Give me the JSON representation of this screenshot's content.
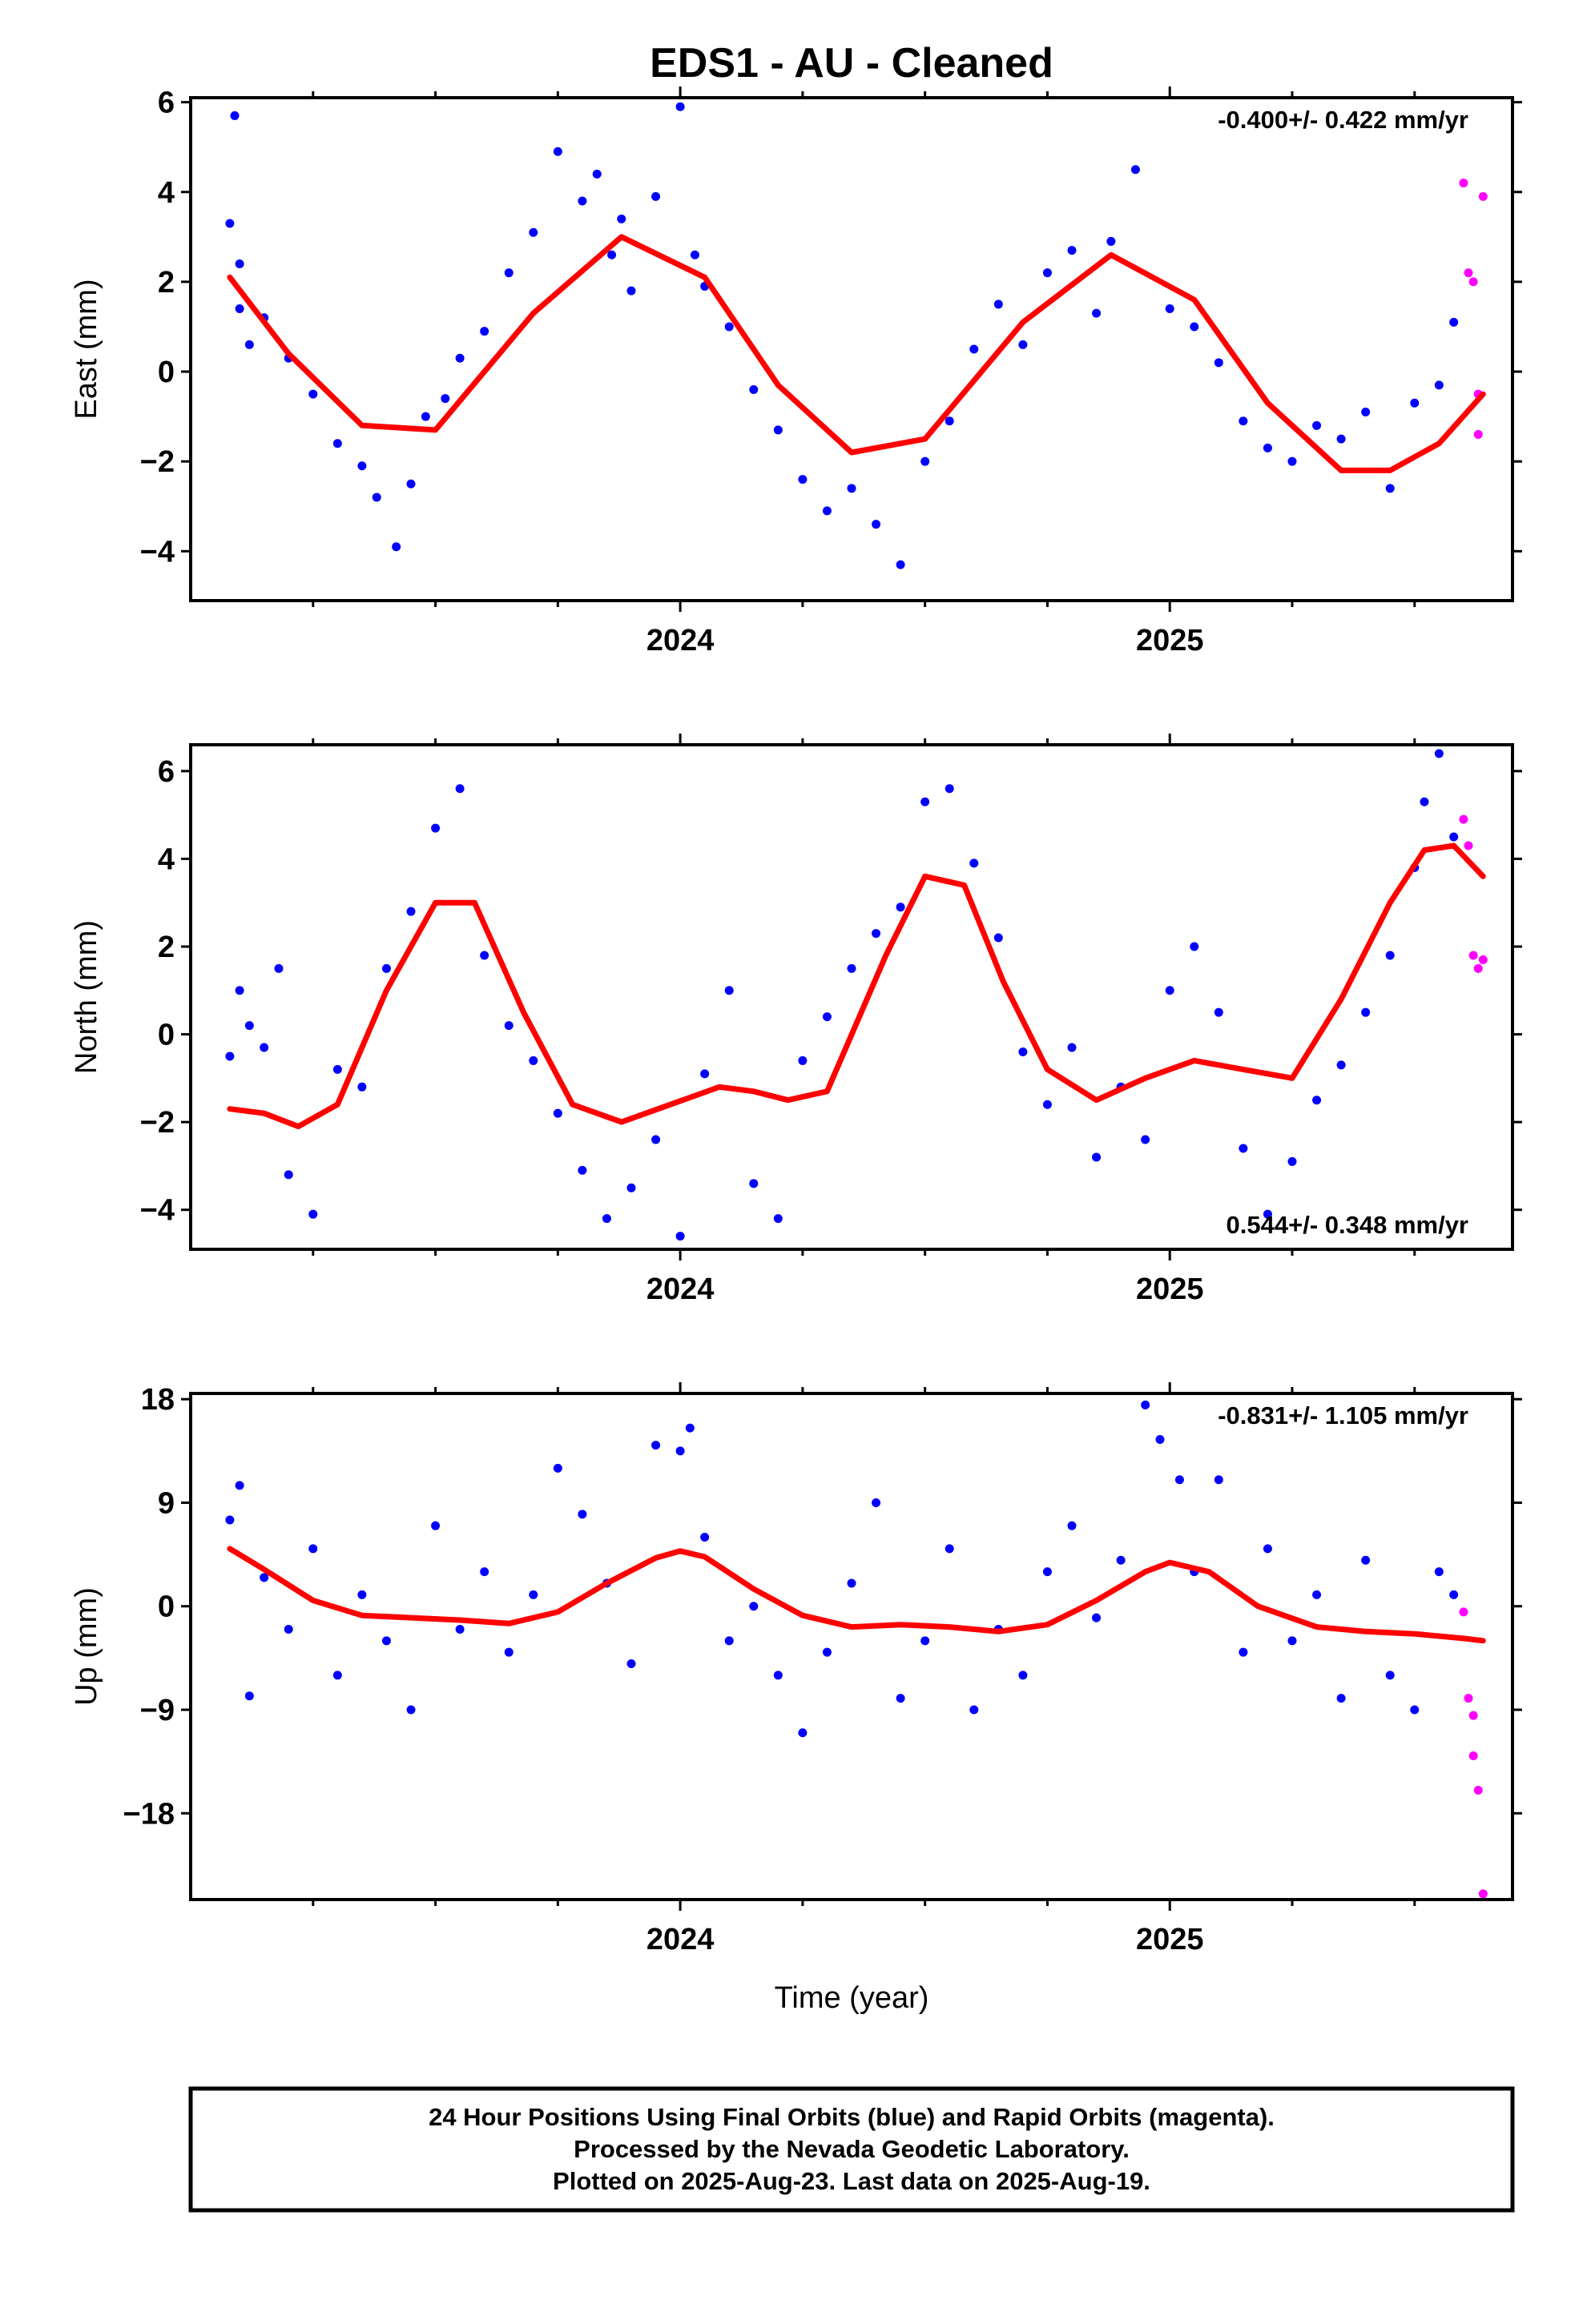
{
  "title": "EDS1  - AU - Cleaned",
  "chart_data": [
    {
      "type": "scatter",
      "xlabel": "",
      "ylabel": "East (mm)",
      "xlim": [
        2023.0,
        2025.7
      ],
      "ylim": [
        -5.1,
        6.1
      ],
      "x_ticks": [
        2024,
        2025
      ],
      "x_tick_labels": [
        "2024",
        "2025"
      ],
      "y_ticks": [
        -4,
        -2,
        0,
        2,
        4,
        6
      ],
      "y_tick_labels": [
        "−4",
        "−2",
        "0",
        "2",
        "4",
        "6"
      ],
      "rate_label": "-0.400+/- 0.422 mm/yr",
      "rate_position": "top-right",
      "seasonal_model": {
        "x": [
          2023.08,
          2023.2,
          2023.35,
          2023.5,
          2023.7,
          2023.88,
          2024.05,
          2024.2,
          2024.35,
          2024.5,
          2024.7,
          2024.88,
          2025.05,
          2025.2,
          2025.35,
          2025.45,
          2025.55,
          2025.64
        ],
        "values": [
          2.1,
          0.4,
          -1.2,
          -1.3,
          1.3,
          3.0,
          2.1,
          -0.3,
          -1.8,
          -1.5,
          1.1,
          2.6,
          1.6,
          -0.7,
          -2.2,
          -2.2,
          -1.6,
          -0.5
        ]
      },
      "series_color": {
        "final": "#0000ff",
        "rapid": "#ff00ff",
        "model": "#ff0000"
      },
      "final_points": {
        "x": [
          2023.08,
          2023.09,
          2023.1,
          2023.1,
          2023.12,
          2023.15,
          2023.2,
          2023.25,
          2023.3,
          2023.35,
          2023.38,
          2023.42,
          2023.45,
          2023.48,
          2023.52,
          2023.55,
          2023.6,
          2023.65,
          2023.7,
          2023.75,
          2023.8,
          2023.83,
          2023.86,
          2023.88,
          2023.9,
          2023.95,
          2024.0,
          2024.03,
          2024.05,
          2024.1,
          2024.15,
          2024.2,
          2024.25,
          2024.3,
          2024.35,
          2024.4,
          2024.45,
          2024.5,
          2024.55,
          2024.6,
          2024.65,
          2024.7,
          2024.75,
          2024.8,
          2024.85,
          2024.88,
          2024.93,
          2025.0,
          2025.05,
          2025.1,
          2025.15,
          2025.2,
          2025.25,
          2025.3,
          2025.35,
          2025.4,
          2025.45,
          2025.5,
          2025.55,
          2025.58
        ],
        "values": [
          3.3,
          5.7,
          2.4,
          1.4,
          0.6,
          1.2,
          0.3,
          -0.5,
          -1.6,
          -2.1,
          -2.8,
          -3.9,
          -2.5,
          -1.0,
          -0.6,
          0.3,
          0.9,
          2.2,
          3.1,
          4.9,
          3.8,
          4.4,
          2.6,
          3.4,
          1.8,
          3.9,
          5.9,
          2.6,
          1.9,
          1.0,
          -0.4,
          -1.3,
          -2.4,
          -3.1,
          -2.6,
          -3.4,
          -4.3,
          -2.0,
          -1.1,
          0.5,
          1.5,
          0.6,
          2.2,
          2.7,
          1.3,
          2.9,
          4.5,
          1.4,
          1.0,
          0.2,
          -1.1,
          -1.7,
          -2.0,
          -1.2,
          -1.5,
          -0.9,
          -2.6,
          -0.7,
          -0.3,
          1.1
        ]
      },
      "rapid_points": {
        "x": [
          2025.6,
          2025.61,
          2025.62,
          2025.63,
          2025.63,
          2025.64
        ],
        "values": [
          4.2,
          2.2,
          2.0,
          -0.5,
          -1.4,
          3.9
        ]
      }
    },
    {
      "type": "scatter",
      "xlabel": "",
      "ylabel": "North (mm)",
      "xlim": [
        2023.0,
        2025.7
      ],
      "ylim": [
        -4.9,
        6.6
      ],
      "x_ticks": [
        2024,
        2025
      ],
      "x_tick_labels": [
        "2024",
        "2025"
      ],
      "y_ticks": [
        -4,
        -2,
        0,
        2,
        4,
        6
      ],
      "y_tick_labels": [
        "−4",
        "−2",
        "0",
        "2",
        "4",
        "6"
      ],
      "rate_label": "0.544+/- 0.348 mm/yr",
      "rate_position": "bottom-right",
      "seasonal_model": {
        "x": [
          2023.08,
          2023.15,
          2023.22,
          2023.3,
          2023.4,
          2023.5,
          2023.58,
          2023.68,
          2023.78,
          2023.88,
          2023.98,
          2024.08,
          2024.15,
          2024.22,
          2024.3,
          2024.42,
          2024.5,
          2024.58,
          2024.66,
          2024.75,
          2024.85,
          2024.95,
          2025.05,
          2025.15,
          2025.25,
          2025.35,
          2025.45,
          2025.52,
          2025.58,
          2025.64
        ],
        "values": [
          -1.7,
          -1.8,
          -2.1,
          -1.6,
          1.0,
          3.0,
          3.0,
          0.5,
          -1.6,
          -2.0,
          -1.6,
          -1.2,
          -1.3,
          -1.5,
          -1.3,
          1.8,
          3.6,
          3.4,
          1.2,
          -0.8,
          -1.5,
          -1.0,
          -0.6,
          -0.8,
          -1.0,
          0.8,
          3.0,
          4.2,
          4.3,
          3.6
        ]
      },
      "series_color": {
        "final": "#0000ff",
        "rapid": "#ff00ff",
        "model": "#ff0000"
      },
      "final_points": {
        "x": [
          2023.08,
          2023.1,
          2023.12,
          2023.15,
          2023.18,
          2023.2,
          2023.25,
          2023.3,
          2023.35,
          2023.4,
          2023.45,
          2023.5,
          2023.55,
          2023.6,
          2023.65,
          2023.7,
          2023.75,
          2023.8,
          2023.85,
          2023.9,
          2023.95,
          2024.0,
          2024.05,
          2024.1,
          2024.15,
          2024.2,
          2024.25,
          2024.3,
          2024.35,
          2024.4,
          2024.45,
          2024.5,
          2024.55,
          2024.6,
          2024.65,
          2024.7,
          2024.75,
          2024.8,
          2024.85,
          2024.9,
          2024.95,
          2025.0,
          2025.05,
          2025.1,
          2025.15,
          2025.2,
          2025.25,
          2025.3,
          2025.35,
          2025.4,
          2025.45,
          2025.5,
          2025.52,
          2025.55,
          2025.58
        ],
        "values": [
          -0.5,
          1.0,
          0.2,
          -0.3,
          1.5,
          -3.2,
          -4.1,
          -0.8,
          -1.2,
          1.5,
          2.8,
          4.7,
          5.6,
          1.8,
          0.2,
          -0.6,
          -1.8,
          -3.1,
          -4.2,
          -3.5,
          -2.4,
          -4.6,
          -0.9,
          1.0,
          -3.4,
          -4.2,
          -0.6,
          0.4,
          1.5,
          2.3,
          2.9,
          5.3,
          5.6,
          3.9,
          2.2,
          -0.4,
          -1.6,
          -0.3,
          -2.8,
          -1.2,
          -2.4,
          1.0,
          2.0,
          0.5,
          -2.6,
          -4.1,
          -2.9,
          -1.5,
          -0.7,
          0.5,
          1.8,
          3.8,
          5.3,
          6.4,
          4.5
        ]
      },
      "rapid_points": {
        "x": [
          2025.6,
          2025.61,
          2025.62,
          2025.63,
          2025.64
        ],
        "values": [
          4.9,
          4.3,
          1.8,
          1.5,
          1.7
        ]
      }
    },
    {
      "type": "scatter",
      "xlabel": "Time (year)",
      "ylabel": "Up (mm)",
      "xlim": [
        2023.0,
        2025.7
      ],
      "ylim": [
        -25.5,
        18.5
      ],
      "x_ticks": [
        2024,
        2025
      ],
      "x_tick_labels": [
        "2024",
        "2025"
      ],
      "y_ticks": [
        -18,
        -9,
        0,
        9,
        18
      ],
      "y_tick_labels": [
        "−18",
        "−9",
        "0",
        "9",
        "18"
      ],
      "rate_label": "-0.831+/- 1.105 mm/yr",
      "rate_position": "top-right",
      "seasonal_model": {
        "x": [
          2023.08,
          2023.15,
          2023.25,
          2023.35,
          2023.45,
          2023.55,
          2023.65,
          2023.75,
          2023.85,
          2023.95,
          2024.0,
          2024.05,
          2024.15,
          2024.25,
          2024.35,
          2024.45,
          2024.55,
          2024.65,
          2024.75,
          2024.85,
          2024.95,
          2025.0,
          2025.08,
          2025.18,
          2025.3,
          2025.4,
          2025.5,
          2025.6,
          2025.64
        ],
        "values": [
          5.0,
          3.2,
          0.5,
          -0.8,
          -1.0,
          -1.2,
          -1.5,
          -0.5,
          2.0,
          4.2,
          4.8,
          4.3,
          1.5,
          -0.8,
          -1.8,
          -1.6,
          -1.8,
          -2.2,
          -1.6,
          0.5,
          3.0,
          3.8,
          3.0,
          0.0,
          -1.8,
          -2.2,
          -2.4,
          -2.8,
          -3.0
        ]
      },
      "series_color": {
        "final": "#0000ff",
        "rapid": "#ff00ff",
        "model": "#ff0000"
      },
      "final_points": {
        "x": [
          2023.08,
          2023.1,
          2023.12,
          2023.15,
          2023.2,
          2023.25,
          2023.3,
          2023.35,
          2023.4,
          2023.45,
          2023.5,
          2023.55,
          2023.6,
          2023.65,
          2023.7,
          2023.75,
          2023.8,
          2023.85,
          2023.9,
          2023.95,
          2024.0,
          2024.02,
          2024.05,
          2024.1,
          2024.15,
          2024.2,
          2024.25,
          2024.3,
          2024.35,
          2024.4,
          2024.45,
          2024.5,
          2024.55,
          2024.6,
          2024.65,
          2024.7,
          2024.75,
          2024.8,
          2024.85,
          2024.9,
          2024.95,
          2024.98,
          2025.02,
          2025.05,
          2025.1,
          2025.15,
          2025.2,
          2025.25,
          2025.3,
          2025.35,
          2025.4,
          2025.45,
          2025.5,
          2025.55,
          2025.58
        ],
        "values": [
          7.5,
          10.5,
          -7.8,
          2.5,
          -2.0,
          5.0,
          -6.0,
          1.0,
          -3.0,
          -9.0,
          7.0,
          -2.0,
          3.0,
          -4.0,
          1.0,
          12.0,
          8.0,
          2.0,
          -5.0,
          14.0,
          13.5,
          15.5,
          6.0,
          -3.0,
          0.0,
          -6.0,
          -11.0,
          -4.0,
          2.0,
          9.0,
          -8.0,
          -3.0,
          5.0,
          -9.0,
          -2.0,
          -6.0,
          3.0,
          7.0,
          -1.0,
          4.0,
          17.5,
          14.5,
          11.0,
          3.0,
          11.0,
          -4.0,
          5.0,
          -3.0,
          1.0,
          -8.0,
          4.0,
          -6.0,
          -9.0,
          3.0,
          1.0
        ]
      },
      "rapid_points": {
        "x": [
          2025.6,
          2025.61,
          2025.62,
          2025.62,
          2025.63,
          2025.64
        ],
        "values": [
          -0.5,
          -8.0,
          -9.5,
          -13.0,
          -16.0,
          -25.0
        ]
      }
    }
  ],
  "footer": {
    "line1": "24 Hour Positions Using Final Orbits (blue) and Rapid Orbits (magenta).",
    "line2": "Processed by the Nevada Geodetic Laboratory.",
    "line3": "Plotted on 2025-Aug-23. Last data on 2025-Aug-19."
  }
}
